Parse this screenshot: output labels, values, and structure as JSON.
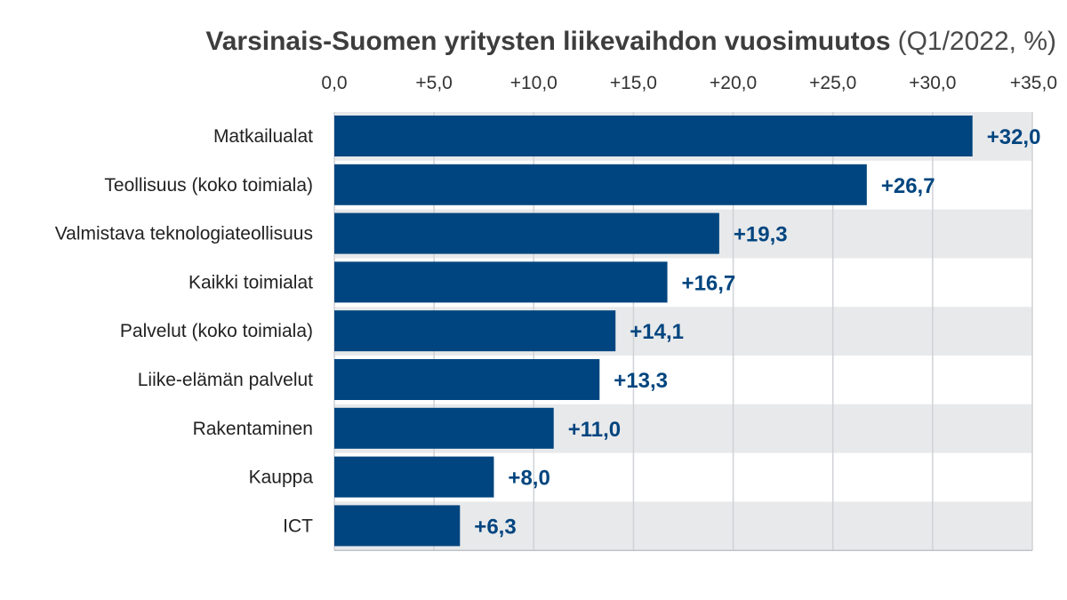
{
  "chart_data": {
    "type": "bar",
    "orientation": "horizontal",
    "title": "Varsinais-Suomen yritysten liikevaihdon vuosimuutos",
    "subtitle": "(Q1/2022, %)",
    "categories": [
      "Matkailualat",
      "Teollisuus (koko toimiala)",
      "Valmistava teknologiateollisuus",
      "Kaikki toimialat",
      "Palvelut (koko toimiala)",
      "Liike-elämän palvelut",
      "Rakentaminen",
      "Kauppa",
      "ICT"
    ],
    "values": [
      32.0,
      26.7,
      19.3,
      16.7,
      14.1,
      13.3,
      11.0,
      8.0,
      6.3
    ],
    "value_labels": [
      "+32,0",
      "+26,7",
      "+19,3",
      "+16,7",
      "+14,1",
      "+13,3",
      "+11,0",
      "+8,0",
      "+6,3"
    ],
    "xlim": [
      0,
      35
    ],
    "x_ticks": [
      0,
      5,
      10,
      15,
      20,
      25,
      30,
      35
    ],
    "x_tick_labels": [
      "0,0",
      "+5,0",
      "+10,0",
      "+15,0",
      "+20,0",
      "+25,0",
      "+30,0",
      "+35,0"
    ],
    "x_axis_position": "top",
    "xlabel": "",
    "ylabel": "",
    "grid": true,
    "legend": "none",
    "colors": {
      "bar": "#00457f",
      "value_label": "#00457f",
      "band": "#e8e9eb",
      "grid": "#d0d2d6",
      "axis": "#bfc2c7"
    }
  }
}
